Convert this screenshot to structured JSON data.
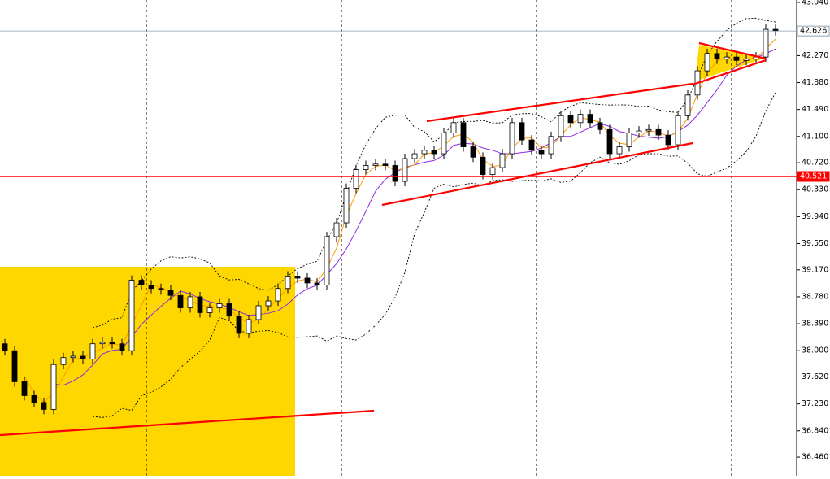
{
  "chart_data": {
    "type": "candlestick",
    "open": [
      38.1,
      38.0,
      37.55,
      37.35,
      37.25,
      37.15,
      37.8,
      37.9,
      37.92,
      37.88,
      38.1,
      38.12,
      38.1,
      38.0,
      39.02,
      38.95,
      38.9,
      38.88,
      38.8,
      38.62,
      38.78,
      38.55,
      38.62,
      38.68,
      38.5,
      38.25,
      38.45,
      38.65,
      38.72,
      38.9,
      39.08,
      39.05,
      38.98,
      38.95,
      39.65,
      39.85,
      40.35,
      40.62,
      40.68,
      40.7,
      40.68,
      40.45,
      40.78,
      40.85,
      40.9,
      40.85,
      41.15,
      41.3,
      40.95,
      40.8,
      40.55,
      40.65,
      40.85,
      41.3,
      41.05,
      40.9,
      40.85,
      41.1,
      41.4,
      41.3,
      41.42,
      41.3,
      41.2,
      40.85,
      40.95,
      41.15,
      41.18,
      41.2,
      41.12,
      40.98,
      41.4,
      41.7,
      42.05,
      42.3,
      42.22,
      42.25,
      42.2,
      42.22,
      42.25,
      42.65
    ],
    "high": [
      38.17,
      38.07,
      37.62,
      37.42,
      37.32,
      37.87,
      37.97,
      37.99,
      37.99,
      38.17,
      38.19,
      38.19,
      38.17,
      39.09,
      39.09,
      39.02,
      38.97,
      38.95,
      38.87,
      38.85,
      38.85,
      38.69,
      38.75,
      38.75,
      38.57,
      38.52,
      38.72,
      38.79,
      38.97,
      39.15,
      39.15,
      39.12,
      39.05,
      39.72,
      39.92,
      40.42,
      40.69,
      40.75,
      40.77,
      40.77,
      40.75,
      40.85,
      40.92,
      40.97,
      40.97,
      41.22,
      41.37,
      41.37,
      41.02,
      40.87,
      40.72,
      40.92,
      41.37,
      41.37,
      41.12,
      40.97,
      41.17,
      41.47,
      41.47,
      41.49,
      41.49,
      41.37,
      41.27,
      41.02,
      41.22,
      41.25,
      41.27,
      41.27,
      41.19,
      41.47,
      41.77,
      42.12,
      42.37,
      42.37,
      42.32,
      42.32,
      42.29,
      42.32,
      42.72,
      42.72
    ],
    "low": [
      37.93,
      37.48,
      37.28,
      37.18,
      37.08,
      37.08,
      37.73,
      37.83,
      37.81,
      37.81,
      38.03,
      38.03,
      37.93,
      37.93,
      38.88,
      38.83,
      38.81,
      38.73,
      38.55,
      38.55,
      38.48,
      38.48,
      38.55,
      38.43,
      38.18,
      38.18,
      38.38,
      38.58,
      38.65,
      38.83,
      38.98,
      38.91,
      38.88,
      38.88,
      39.58,
      39.78,
      40.28,
      40.55,
      40.61,
      40.61,
      40.38,
      40.38,
      40.71,
      40.78,
      40.78,
      40.78,
      41.08,
      40.88,
      40.73,
      40.48,
      40.48,
      40.58,
      40.78,
      40.98,
      40.83,
      40.78,
      40.78,
      41.03,
      41.23,
      41.23,
      41.23,
      41.13,
      40.78,
      40.78,
      40.88,
      41.08,
      41.11,
      41.05,
      40.91,
      40.91,
      41.33,
      41.63,
      41.98,
      42.15,
      42.15,
      42.13,
      42.13,
      42.15,
      42.18,
      42.56
    ],
    "close": [
      38.0,
      37.55,
      37.35,
      37.25,
      37.15,
      37.8,
      37.9,
      37.92,
      37.88,
      38.1,
      38.12,
      38.1,
      38.0,
      39.02,
      38.95,
      38.9,
      38.88,
      38.8,
      38.62,
      38.78,
      38.55,
      38.62,
      38.68,
      38.5,
      38.25,
      38.45,
      38.65,
      38.72,
      38.9,
      39.08,
      39.05,
      38.98,
      38.95,
      39.65,
      39.85,
      40.35,
      40.62,
      40.68,
      40.7,
      40.68,
      40.45,
      40.78,
      40.85,
      40.9,
      40.85,
      41.15,
      41.3,
      40.95,
      40.8,
      40.55,
      40.65,
      40.85,
      41.3,
      41.05,
      40.9,
      40.85,
      41.1,
      41.4,
      41.3,
      41.42,
      41.3,
      41.2,
      40.85,
      40.95,
      41.15,
      41.18,
      41.2,
      41.12,
      40.98,
      41.4,
      41.7,
      42.05,
      42.3,
      42.22,
      42.25,
      42.2,
      42.22,
      42.25,
      42.65,
      42.626
    ],
    "ylim": [
      36.19,
      43.075
    ],
    "yticks": [
      {
        "value": 43.04,
        "label": "43.040"
      },
      {
        "value": 42.27,
        "label": "42.270"
      },
      {
        "value": 41.88,
        "label": "41.880"
      },
      {
        "value": 41.49,
        "label": "41.490"
      },
      {
        "value": 41.1,
        "label": "41.100"
      },
      {
        "value": 40.72,
        "label": "40.720"
      },
      {
        "value": 40.33,
        "label": "40.330"
      },
      {
        "value": 39.94,
        "label": "39.940"
      },
      {
        "value": 39.55,
        "label": "39.550"
      },
      {
        "value": 39.17,
        "label": "39.170"
      },
      {
        "value": 38.78,
        "label": "38.780"
      },
      {
        "value": 38.39,
        "label": "38.390"
      },
      {
        "value": 38.0,
        "label": "38.000"
      },
      {
        "value": 37.62,
        "label": "37.620"
      },
      {
        "value": 37.23,
        "label": "37.230"
      },
      {
        "value": 36.84,
        "label": "36.840"
      },
      {
        "value": 36.46,
        "label": "36.460"
      }
    ],
    "price_lines": [
      {
        "value": 42.626,
        "color": "#8fa0b0"
      },
      {
        "value": 40.521,
        "color": "#ff0000"
      }
    ],
    "up_color": "#ffffff",
    "down_color": "#000000"
  }
}
